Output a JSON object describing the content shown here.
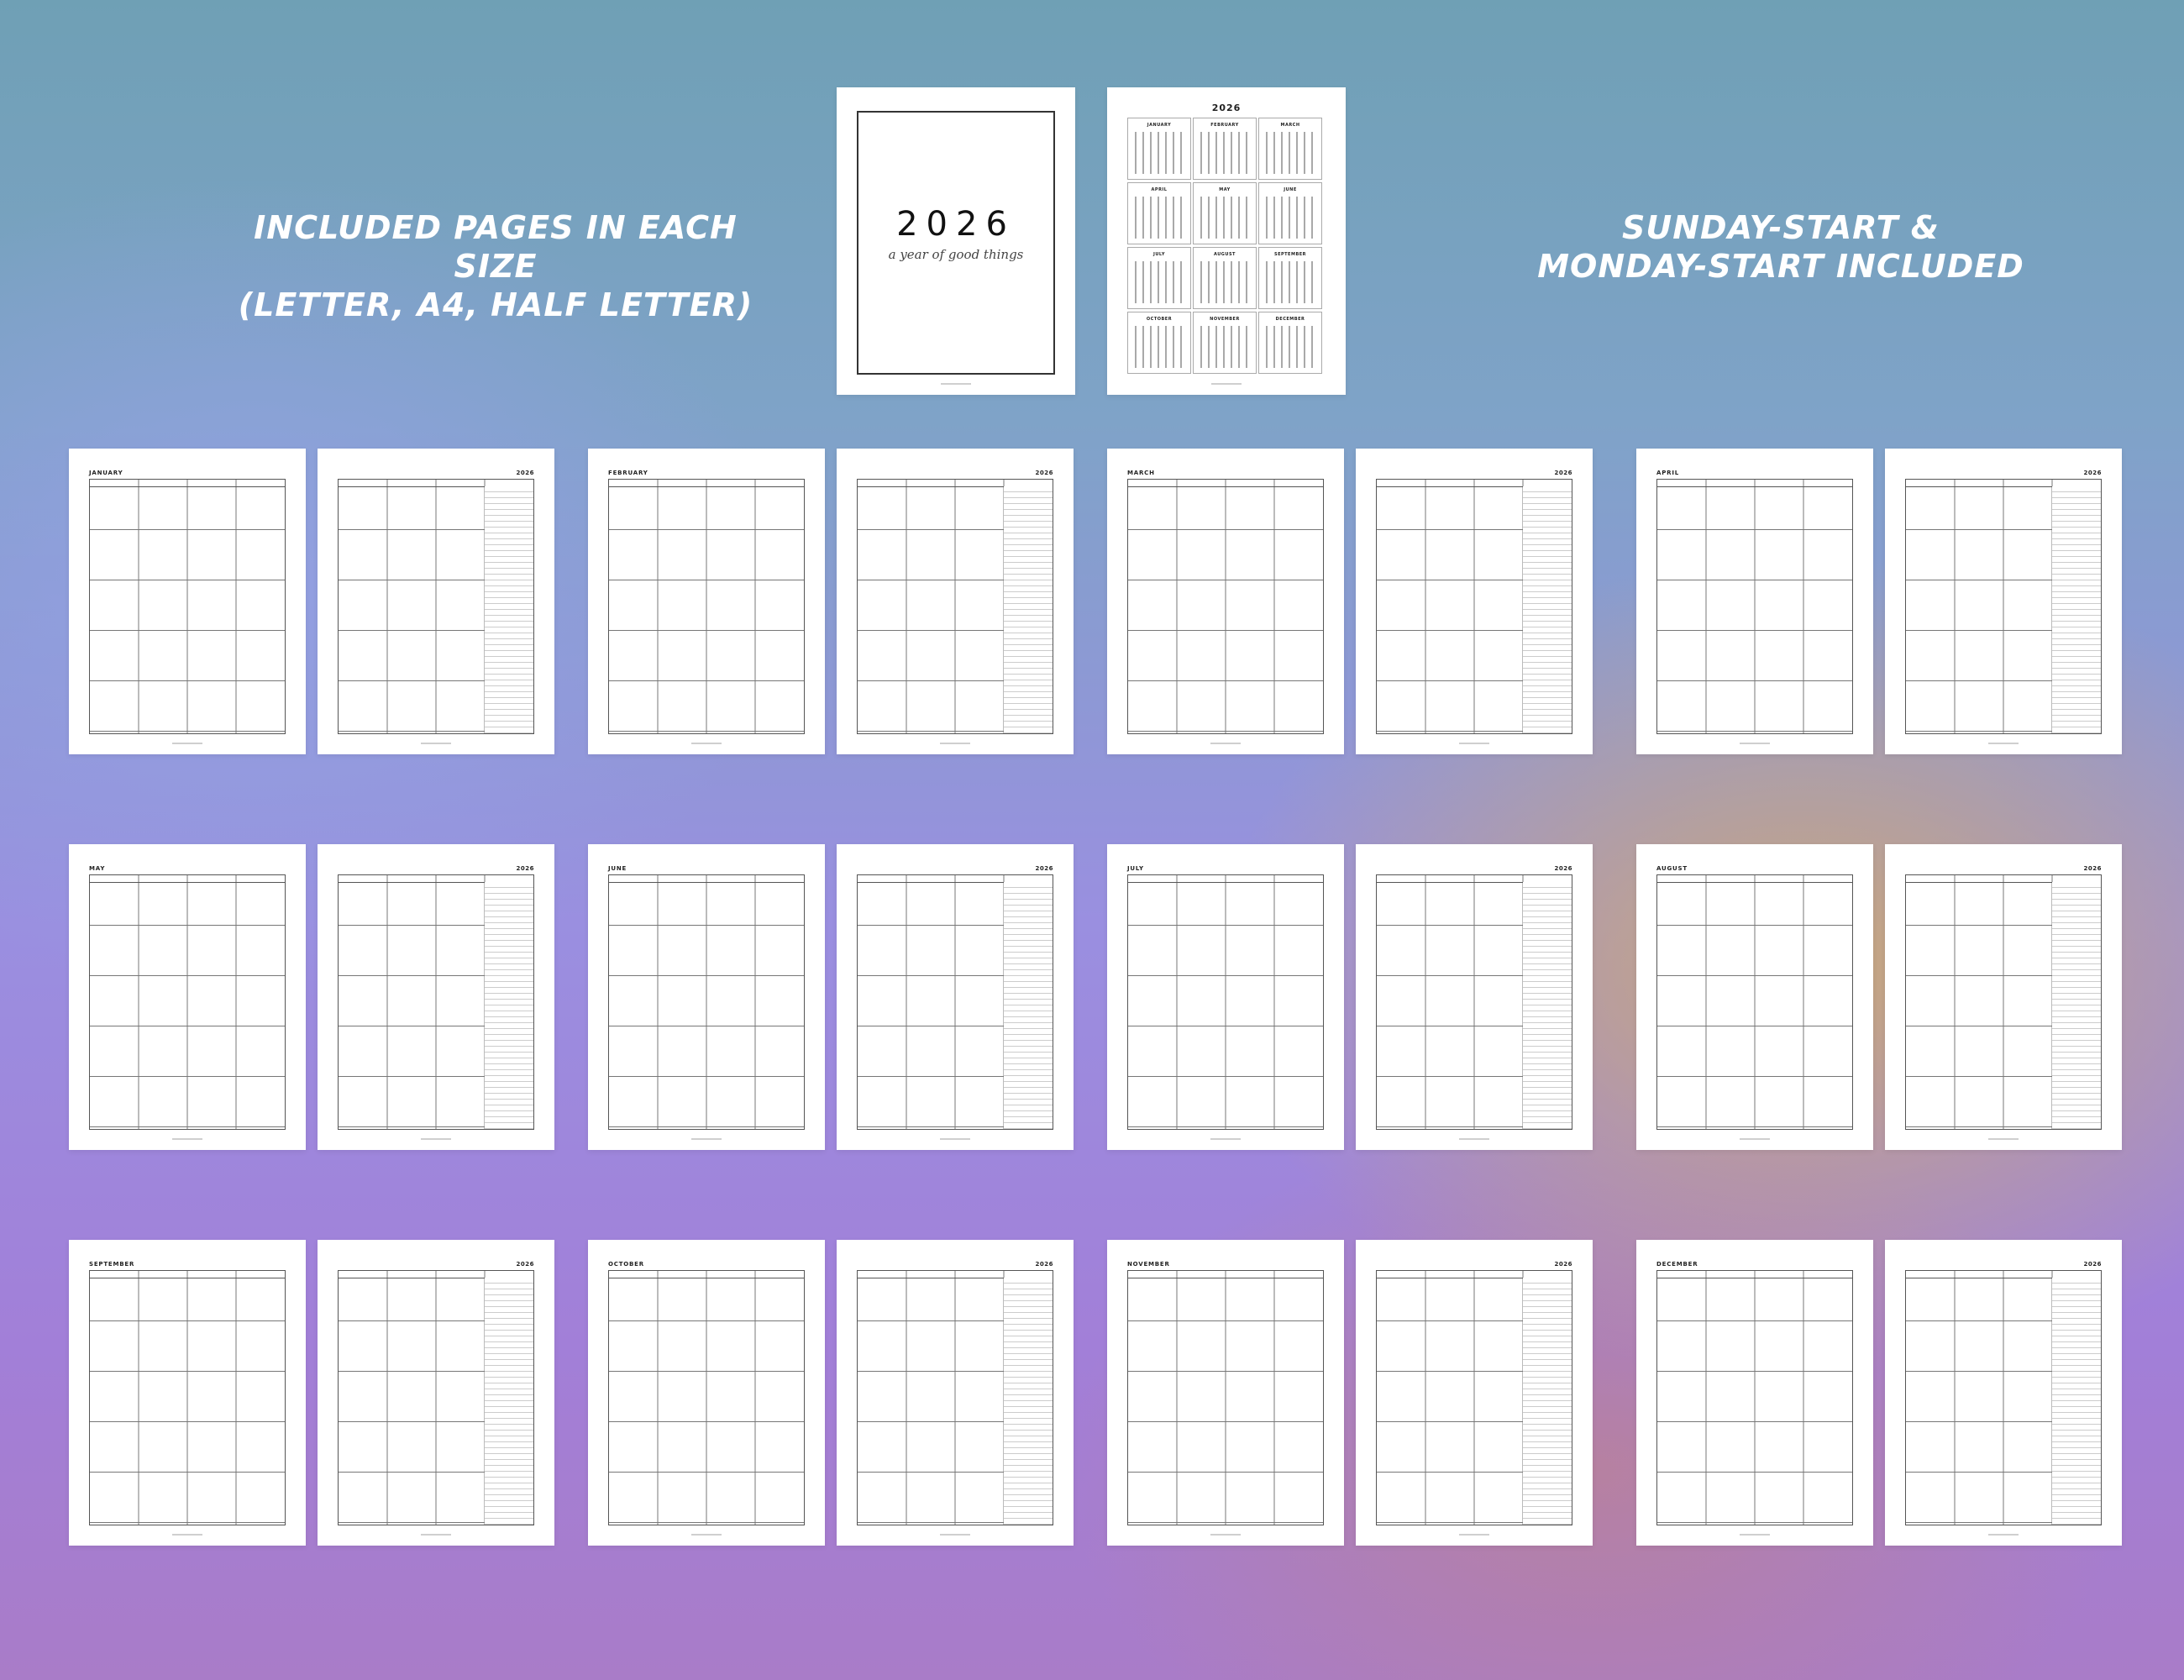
{
  "headline_left": {
    "line1": "Included pages in each size",
    "line2": "(Letter, A4, Half letter)"
  },
  "headline_right": {
    "line1": "Sunday-start &",
    "line2": "Monday-start included"
  },
  "cover": {
    "year": "2026",
    "tagline": "a year of good things"
  },
  "overview": {
    "year": "2026",
    "months": [
      "JANUARY",
      "FEBRUARY",
      "MARCH",
      "APRIL",
      "MAY",
      "JUNE",
      "JULY",
      "AUGUST",
      "SEPTEMBER",
      "OCTOBER",
      "NOVEMBER",
      "DECEMBER"
    ]
  },
  "spreads": [
    {
      "month": "JANUARY",
      "year": "2026"
    },
    {
      "month": "FEBRUARY",
      "year": "2026"
    },
    {
      "month": "MARCH",
      "year": "2026"
    },
    {
      "month": "APRIL",
      "year": "2026"
    },
    {
      "month": "MAY",
      "year": "2026"
    },
    {
      "month": "JUNE",
      "year": "2026"
    },
    {
      "month": "JULY",
      "year": "2026"
    },
    {
      "month": "AUGUST",
      "year": "2026"
    },
    {
      "month": "SEPTEMBER",
      "year": "2026"
    },
    {
      "month": "OCTOBER",
      "year": "2026"
    },
    {
      "month": "NOVEMBER",
      "year": "2026"
    },
    {
      "month": "DECEMBER",
      "year": "2026"
    }
  ]
}
